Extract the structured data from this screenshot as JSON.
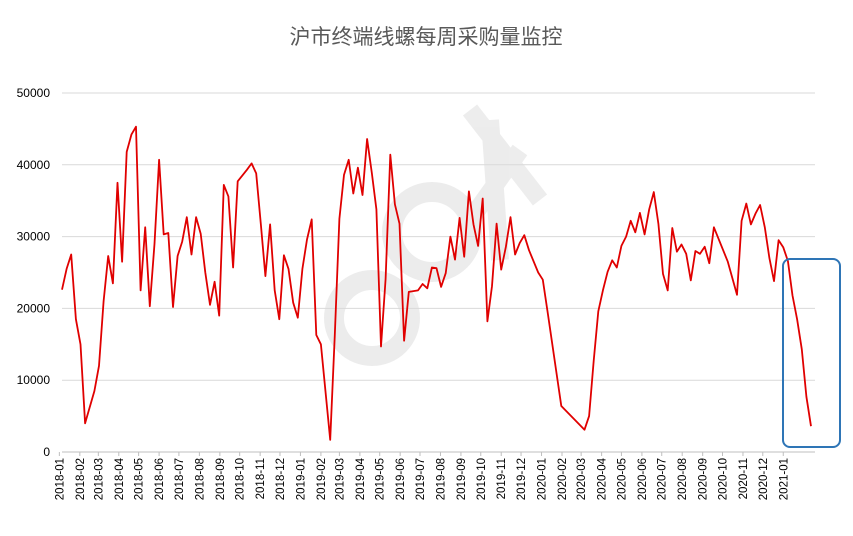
{
  "chart_data": {
    "type": "line",
    "title": "沪市终端线螺每周采购量监控",
    "xlabel": "",
    "ylabel": "",
    "ylim": [
      0,
      50000
    ],
    "yticks": [
      "0",
      "10000",
      "20000",
      "30000",
      "40000",
      "50000"
    ],
    "grid": true,
    "legend": "none",
    "series_color": "#e00000",
    "highlight_color": "#2e75b6",
    "month_ticks": [
      "2018-01",
      "2018-02",
      "2018-03",
      "2018-04",
      "2018-05",
      "2018-06",
      "2018-07",
      "2018-08",
      "2018-09",
      "2018-10",
      "2018-11",
      "2018-12",
      "2019-01",
      "2019-02",
      "2019-03",
      "2019-04",
      "2019-05",
      "2019-06",
      "2019-07",
      "2019-08",
      "2019-09",
      "2019-10",
      "2019-11",
      "2019-12",
      "2020-01",
      "2020-02",
      "2020-03",
      "2020-04",
      "2020-05",
      "2020-06",
      "2020-07",
      "2020-08",
      "2020-09",
      "2020-10",
      "2020-11",
      "2020-12",
      "2021-01"
    ],
    "series": [
      {
        "values": [
          [
            "2018-01-05",
            22600
          ],
          [
            "2018-01-12",
            25500
          ],
          [
            "2018-01-19",
            27500
          ],
          [
            "2018-01-26",
            18500
          ],
          [
            "2018-02-02",
            15000
          ],
          [
            "2018-02-09",
            4000
          ],
          [
            "2018-02-23",
            8500
          ],
          [
            "2018-03-02",
            12000
          ],
          [
            "2018-03-09",
            21000
          ],
          [
            "2018-03-16",
            27300
          ],
          [
            "2018-03-23",
            23500
          ],
          [
            "2018-03-30",
            37500
          ],
          [
            "2018-04-06",
            26500
          ],
          [
            "2018-04-13",
            41800
          ],
          [
            "2018-04-20",
            44200
          ],
          [
            "2018-04-27",
            45300
          ],
          [
            "2018-05-04",
            22500
          ],
          [
            "2018-05-11",
            31300
          ],
          [
            "2018-05-18",
            20300
          ],
          [
            "2018-05-25",
            29000
          ],
          [
            "2018-06-01",
            40700
          ],
          [
            "2018-06-08",
            30300
          ],
          [
            "2018-06-15",
            30500
          ],
          [
            "2018-06-22",
            20200
          ],
          [
            "2018-06-29",
            27300
          ],
          [
            "2018-07-06",
            29300
          ],
          [
            "2018-07-13",
            32700
          ],
          [
            "2018-07-20",
            27500
          ],
          [
            "2018-07-27",
            32700
          ],
          [
            "2018-08-03",
            30400
          ],
          [
            "2018-08-10",
            25000
          ],
          [
            "2018-08-17",
            20500
          ],
          [
            "2018-08-24",
            23700
          ],
          [
            "2018-08-31",
            19000
          ],
          [
            "2018-09-07",
            37200
          ],
          [
            "2018-09-14",
            35600
          ],
          [
            "2018-09-21",
            25700
          ],
          [
            "2018-09-28",
            37700
          ],
          [
            "2018-10-12",
            39300
          ],
          [
            "2018-10-19",
            40200
          ],
          [
            "2018-10-26",
            38800
          ],
          [
            "2018-11-02",
            31800
          ],
          [
            "2018-11-09",
            24500
          ],
          [
            "2018-11-16",
            31700
          ],
          [
            "2018-11-23",
            22500
          ],
          [
            "2018-11-30",
            18500
          ],
          [
            "2018-12-07",
            27400
          ],
          [
            "2018-12-14",
            25500
          ],
          [
            "2018-12-21",
            20800
          ],
          [
            "2018-12-28",
            18700
          ],
          [
            "2019-01-04",
            25500
          ],
          [
            "2019-01-11",
            29600
          ],
          [
            "2019-01-18",
            32400
          ],
          [
            "2019-01-25",
            16300
          ],
          [
            "2019-02-01",
            15000
          ],
          [
            "2019-02-15",
            1700
          ],
          [
            "2019-02-22",
            16300
          ],
          [
            "2019-03-01",
            32500
          ],
          [
            "2019-03-08",
            38600
          ],
          [
            "2019-03-15",
            40700
          ],
          [
            "2019-03-22",
            36000
          ],
          [
            "2019-03-29",
            39600
          ],
          [
            "2019-04-05",
            35800
          ],
          [
            "2019-04-12",
            43600
          ],
          [
            "2019-04-19",
            38900
          ],
          [
            "2019-04-26",
            33800
          ],
          [
            "2019-05-03",
            14700
          ],
          [
            "2019-05-10",
            24100
          ],
          [
            "2019-05-17",
            41400
          ],
          [
            "2019-05-24",
            34500
          ],
          [
            "2019-05-31",
            31800
          ],
          [
            "2019-06-07",
            15500
          ],
          [
            "2019-06-14",
            22300
          ],
          [
            "2019-06-28",
            22500
          ],
          [
            "2019-07-05",
            23400
          ],
          [
            "2019-07-12",
            22800
          ],
          [
            "2019-07-19",
            25700
          ],
          [
            "2019-07-26",
            25600
          ],
          [
            "2019-08-02",
            23000
          ],
          [
            "2019-08-09",
            24900
          ],
          [
            "2019-08-16",
            30000
          ],
          [
            "2019-08-23",
            26800
          ],
          [
            "2019-08-30",
            32600
          ],
          [
            "2019-09-06",
            27200
          ],
          [
            "2019-09-13",
            36300
          ],
          [
            "2019-09-20",
            31700
          ],
          [
            "2019-09-27",
            28700
          ],
          [
            "2019-10-04",
            35300
          ],
          [
            "2019-10-11",
            18200
          ],
          [
            "2019-10-18",
            23100
          ],
          [
            "2019-10-25",
            31800
          ],
          [
            "2019-11-01",
            25400
          ],
          [
            "2019-11-08",
            28600
          ],
          [
            "2019-11-15",
            32700
          ],
          [
            "2019-11-22",
            27500
          ],
          [
            "2019-11-29",
            29100
          ],
          [
            "2019-12-06",
            30200
          ],
          [
            "2019-12-13",
            28100
          ],
          [
            "2019-12-27",
            25000
          ],
          [
            "2020-01-03",
            24000
          ],
          [
            "2020-01-10",
            19600
          ],
          [
            "2020-01-31",
            6400
          ],
          [
            "2020-03-06",
            3100
          ],
          [
            "2020-03-13",
            5000
          ],
          [
            "2020-03-20",
            12700
          ],
          [
            "2020-03-27",
            19600
          ],
          [
            "2020-04-03",
            22500
          ],
          [
            "2020-04-10",
            25100
          ],
          [
            "2020-04-17",
            26700
          ],
          [
            "2020-04-24",
            25700
          ],
          [
            "2020-05-01",
            28700
          ],
          [
            "2020-05-08",
            30000
          ],
          [
            "2020-05-15",
            32200
          ],
          [
            "2020-05-22",
            30600
          ],
          [
            "2020-05-29",
            33300
          ],
          [
            "2020-06-05",
            30300
          ],
          [
            "2020-06-12",
            33800
          ],
          [
            "2020-06-19",
            36200
          ],
          [
            "2020-06-26",
            31800
          ],
          [
            "2020-07-03",
            24800
          ],
          [
            "2020-07-10",
            22500
          ],
          [
            "2020-07-17",
            31200
          ],
          [
            "2020-07-24",
            27900
          ],
          [
            "2020-07-31",
            28900
          ],
          [
            "2020-08-07",
            27600
          ],
          [
            "2020-08-14",
            23900
          ],
          [
            "2020-08-21",
            28000
          ],
          [
            "2020-08-28",
            27600
          ],
          [
            "2020-09-04",
            28600
          ],
          [
            "2020-09-11",
            26300
          ],
          [
            "2020-09-18",
            31300
          ],
          [
            "2020-10-09",
            26500
          ],
          [
            "2020-10-23",
            21900
          ],
          [
            "2020-10-30",
            32200
          ],
          [
            "2020-11-06",
            34600
          ],
          [
            "2020-11-13",
            31700
          ],
          [
            "2020-11-20",
            33200
          ],
          [
            "2020-11-27",
            34400
          ],
          [
            "2020-12-04",
            31300
          ],
          [
            "2020-12-11",
            27000
          ],
          [
            "2020-12-18",
            23800
          ],
          [
            "2020-12-25",
            29500
          ],
          [
            "2021-01-01",
            28500
          ],
          [
            "2021-01-08",
            26600
          ],
          [
            "2021-01-15",
            21800
          ],
          [
            "2021-01-22",
            18500
          ],
          [
            "2021-01-29",
            14300
          ],
          [
            "2021-02-05",
            7700
          ],
          [
            "2021-02-12",
            3600
          ]
        ]
      }
    ]
  }
}
